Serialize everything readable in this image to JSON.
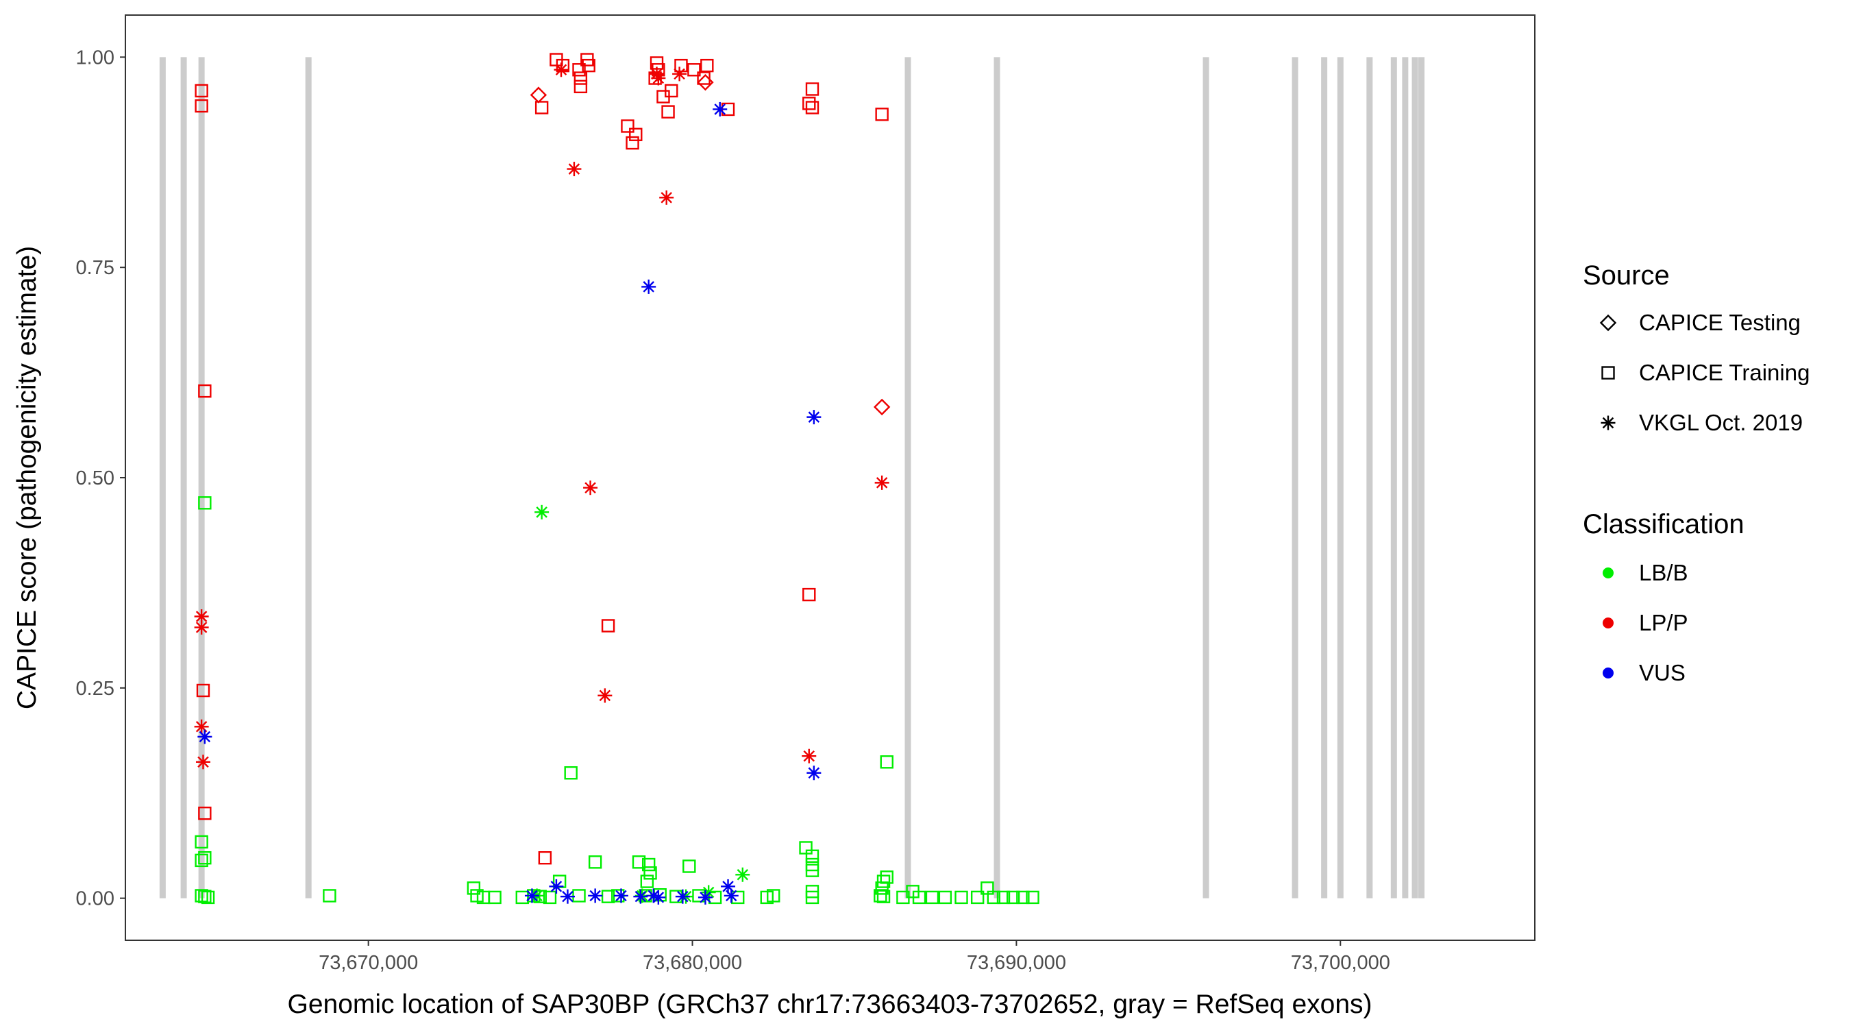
{
  "chart_data": {
    "type": "scatter",
    "xlabel": "Genomic location of SAP30BP (GRCh37 chr17:73663403-73702652, gray = RefSeq exons)",
    "ylabel": "CAPICE score (pathogenicity estimate)",
    "xlim": [
      73662500,
      73706000
    ],
    "ylim": [
      -0.05,
      1.05
    ],
    "xticks": [
      73670000,
      73680000,
      73690000,
      73700000
    ],
    "xtick_labels": [
      "73,670,000",
      "73,680,000",
      "73,690,000",
      "73,700,000"
    ],
    "yticks": [
      0,
      0.25,
      0.5,
      0.75,
      1.0
    ],
    "ytick_labels": [
      "0.00",
      "0.25",
      "0.50",
      "0.75",
      "1.00"
    ],
    "exons": [
      73663650,
      73664300,
      73664850,
      73668150,
      73686650,
      73689400,
      73695850,
      73698600,
      73699500,
      73700000,
      73700900,
      73701650,
      73702000,
      73702300,
      73702500
    ],
    "legend": {
      "source": {
        "title": "Source",
        "items": [
          {
            "key": "testing",
            "label": "CAPICE Testing",
            "shape": "diamond"
          },
          {
            "key": "training",
            "label": "CAPICE Training",
            "shape": "square"
          },
          {
            "key": "vkgl",
            "label": "VKGL Oct. 2019",
            "shape": "asterisk"
          }
        ]
      },
      "classification": {
        "title": "Classification",
        "items": [
          {
            "key": "LB",
            "label": "LB/B",
            "color": "#00ee00"
          },
          {
            "key": "LP",
            "label": "LP/P",
            "color": "#ee0000"
          },
          {
            "key": "VUS",
            "label": "VUS",
            "color": "#0000ee"
          }
        ]
      }
    },
    "series": [
      {
        "name": "LP/P CAPICE Training",
        "class": "LP",
        "source": "training",
        "points": [
          [
            73664850,
            0.96
          ],
          [
            73664850,
            0.942
          ],
          [
            73664950,
            0.603
          ],
          [
            73664900,
            0.247
          ],
          [
            73664950,
            0.101
          ],
          [
            73675800,
            0.997
          ],
          [
            73676000,
            0.99
          ],
          [
            73676500,
            0.985
          ],
          [
            73676550,
            0.975
          ],
          [
            73676550,
            0.965
          ],
          [
            73676750,
            0.997
          ],
          [
            73676800,
            0.99
          ],
          [
            73675350,
            0.94
          ],
          [
            73678000,
            0.918
          ],
          [
            73678150,
            0.898
          ],
          [
            73678250,
            0.908
          ],
          [
            73678900,
            0.993
          ],
          [
            73678950,
            0.985
          ],
          [
            73678850,
            0.975
          ],
          [
            73679350,
            0.96
          ],
          [
            73679250,
            0.935
          ],
          [
            73679100,
            0.953
          ],
          [
            73679650,
            0.99
          ],
          [
            73680050,
            0.985
          ],
          [
            73680450,
            0.99
          ],
          [
            73680350,
            0.975
          ],
          [
            73681100,
            0.938
          ],
          [
            73683700,
            0.962
          ],
          [
            73683600,
            0.945
          ],
          [
            73683700,
            0.94
          ],
          [
            73685850,
            0.932
          ],
          [
            73683600,
            0.361
          ],
          [
            73677400,
            0.324
          ],
          [
            73675450,
            0.048
          ]
        ]
      },
      {
        "name": "LP/P VKGL Oct. 2019",
        "class": "LP",
        "source": "vkgl",
        "points": [
          [
            73664850,
            0.335
          ],
          [
            73664850,
            0.322
          ],
          [
            73664850,
            0.204
          ],
          [
            73664900,
            0.162
          ],
          [
            73676350,
            0.867
          ],
          [
            73676850,
            0.488
          ],
          [
            73677300,
            0.241
          ],
          [
            73679200,
            0.833
          ],
          [
            73675950,
            0.985
          ],
          [
            73678900,
            0.98
          ],
          [
            73678950,
            0.975
          ],
          [
            73679600,
            0.98
          ],
          [
            73683600,
            0.169
          ],
          [
            73685850,
            0.494
          ]
        ]
      },
      {
        "name": "LP/P CAPICE Testing",
        "class": "LP",
        "source": "testing",
        "points": [
          [
            73675250,
            0.955
          ],
          [
            73680400,
            0.97
          ],
          [
            73685850,
            0.584
          ]
        ]
      },
      {
        "name": "LB/B CAPICE Training",
        "class": "LB",
        "source": "training",
        "points": [
          [
            73664950,
            0.47
          ],
          [
            73664850,
            0.067
          ],
          [
            73664950,
            0.048
          ],
          [
            73664850,
            0.045
          ],
          [
            73664850,
            0.003
          ],
          [
            73664950,
            0.002
          ],
          [
            73665050,
            0.001
          ],
          [
            73668800,
            0.003
          ],
          [
            73673250,
            0.012
          ],
          [
            73673350,
            0.003
          ],
          [
            73673550,
            0.001
          ],
          [
            73673900,
            0.001
          ],
          [
            73674750,
            0.001
          ],
          [
            73675100,
            0.003
          ],
          [
            73675300,
            0.002
          ],
          [
            73675600,
            0.001
          ],
          [
            73675900,
            0.02
          ],
          [
            73676250,
            0.149
          ],
          [
            73676500,
            0.003
          ],
          [
            73677000,
            0.043
          ],
          [
            73677400,
            0.002
          ],
          [
            73677700,
            0.003
          ],
          [
            73678350,
            0.043
          ],
          [
            73678650,
            0.04
          ],
          [
            73678700,
            0.03
          ],
          [
            73678600,
            0.02
          ],
          [
            73678550,
            0.003
          ],
          [
            73679000,
            0.004
          ],
          [
            73679500,
            0.002
          ],
          [
            73679900,
            0.038
          ],
          [
            73680200,
            0.003
          ],
          [
            73680700,
            0.001
          ],
          [
            73681400,
            0.001
          ],
          [
            73682300,
            0.001
          ],
          [
            73682500,
            0.003
          ],
          [
            73683500,
            0.06
          ],
          [
            73683700,
            0.05
          ],
          [
            73683700,
            0.04
          ],
          [
            73683700,
            0.033
          ],
          [
            73683700,
            0.008
          ],
          [
            73683700,
            0.001
          ],
          [
            73685800,
            0.003
          ],
          [
            73686000,
            0.025
          ],
          [
            73685900,
            0.02
          ],
          [
            73685850,
            0.012
          ],
          [
            73685900,
            0.002
          ],
          [
            73686000,
            0.162
          ],
          [
            73686500,
            0.001
          ],
          [
            73686800,
            0.008
          ],
          [
            73687000,
            0.001
          ],
          [
            73687400,
            0.001
          ],
          [
            73687800,
            0.001
          ],
          [
            73688300,
            0.001
          ],
          [
            73688800,
            0.001
          ],
          [
            73689100,
            0.012
          ],
          [
            73689300,
            0.001
          ],
          [
            73689600,
            0.001
          ],
          [
            73689900,
            0.001
          ],
          [
            73690200,
            0.001
          ],
          [
            73690500,
            0.001
          ]
        ]
      },
      {
        "name": "LB/B VKGL Oct. 2019",
        "class": "LB",
        "source": "vkgl",
        "points": [
          [
            73675350,
            0.459
          ],
          [
            73681550,
            0.028
          ],
          [
            73680500,
            0.007
          ],
          [
            73675200,
            0.003
          ],
          [
            73678450,
            0.003
          ],
          [
            73679800,
            0.002
          ]
        ]
      },
      {
        "name": "VUS VKGL Oct. 2019",
        "class": "VUS",
        "source": "vkgl",
        "points": [
          [
            73678650,
            0.727
          ],
          [
            73680850,
            0.938
          ],
          [
            73683750,
            0.572
          ],
          [
            73683750,
            0.149
          ],
          [
            73664950,
            0.192
          ],
          [
            73675050,
            0.003
          ],
          [
            73675800,
            0.014
          ],
          [
            73676150,
            0.002
          ],
          [
            73677000,
            0.003
          ],
          [
            73677800,
            0.003
          ],
          [
            73678400,
            0.002
          ],
          [
            73678800,
            0.003
          ],
          [
            73678950,
            0.001
          ],
          [
            73679700,
            0.002
          ],
          [
            73680400,
            0.001
          ],
          [
            73681100,
            0.014
          ],
          [
            73681200,
            0.003
          ]
        ]
      }
    ]
  }
}
